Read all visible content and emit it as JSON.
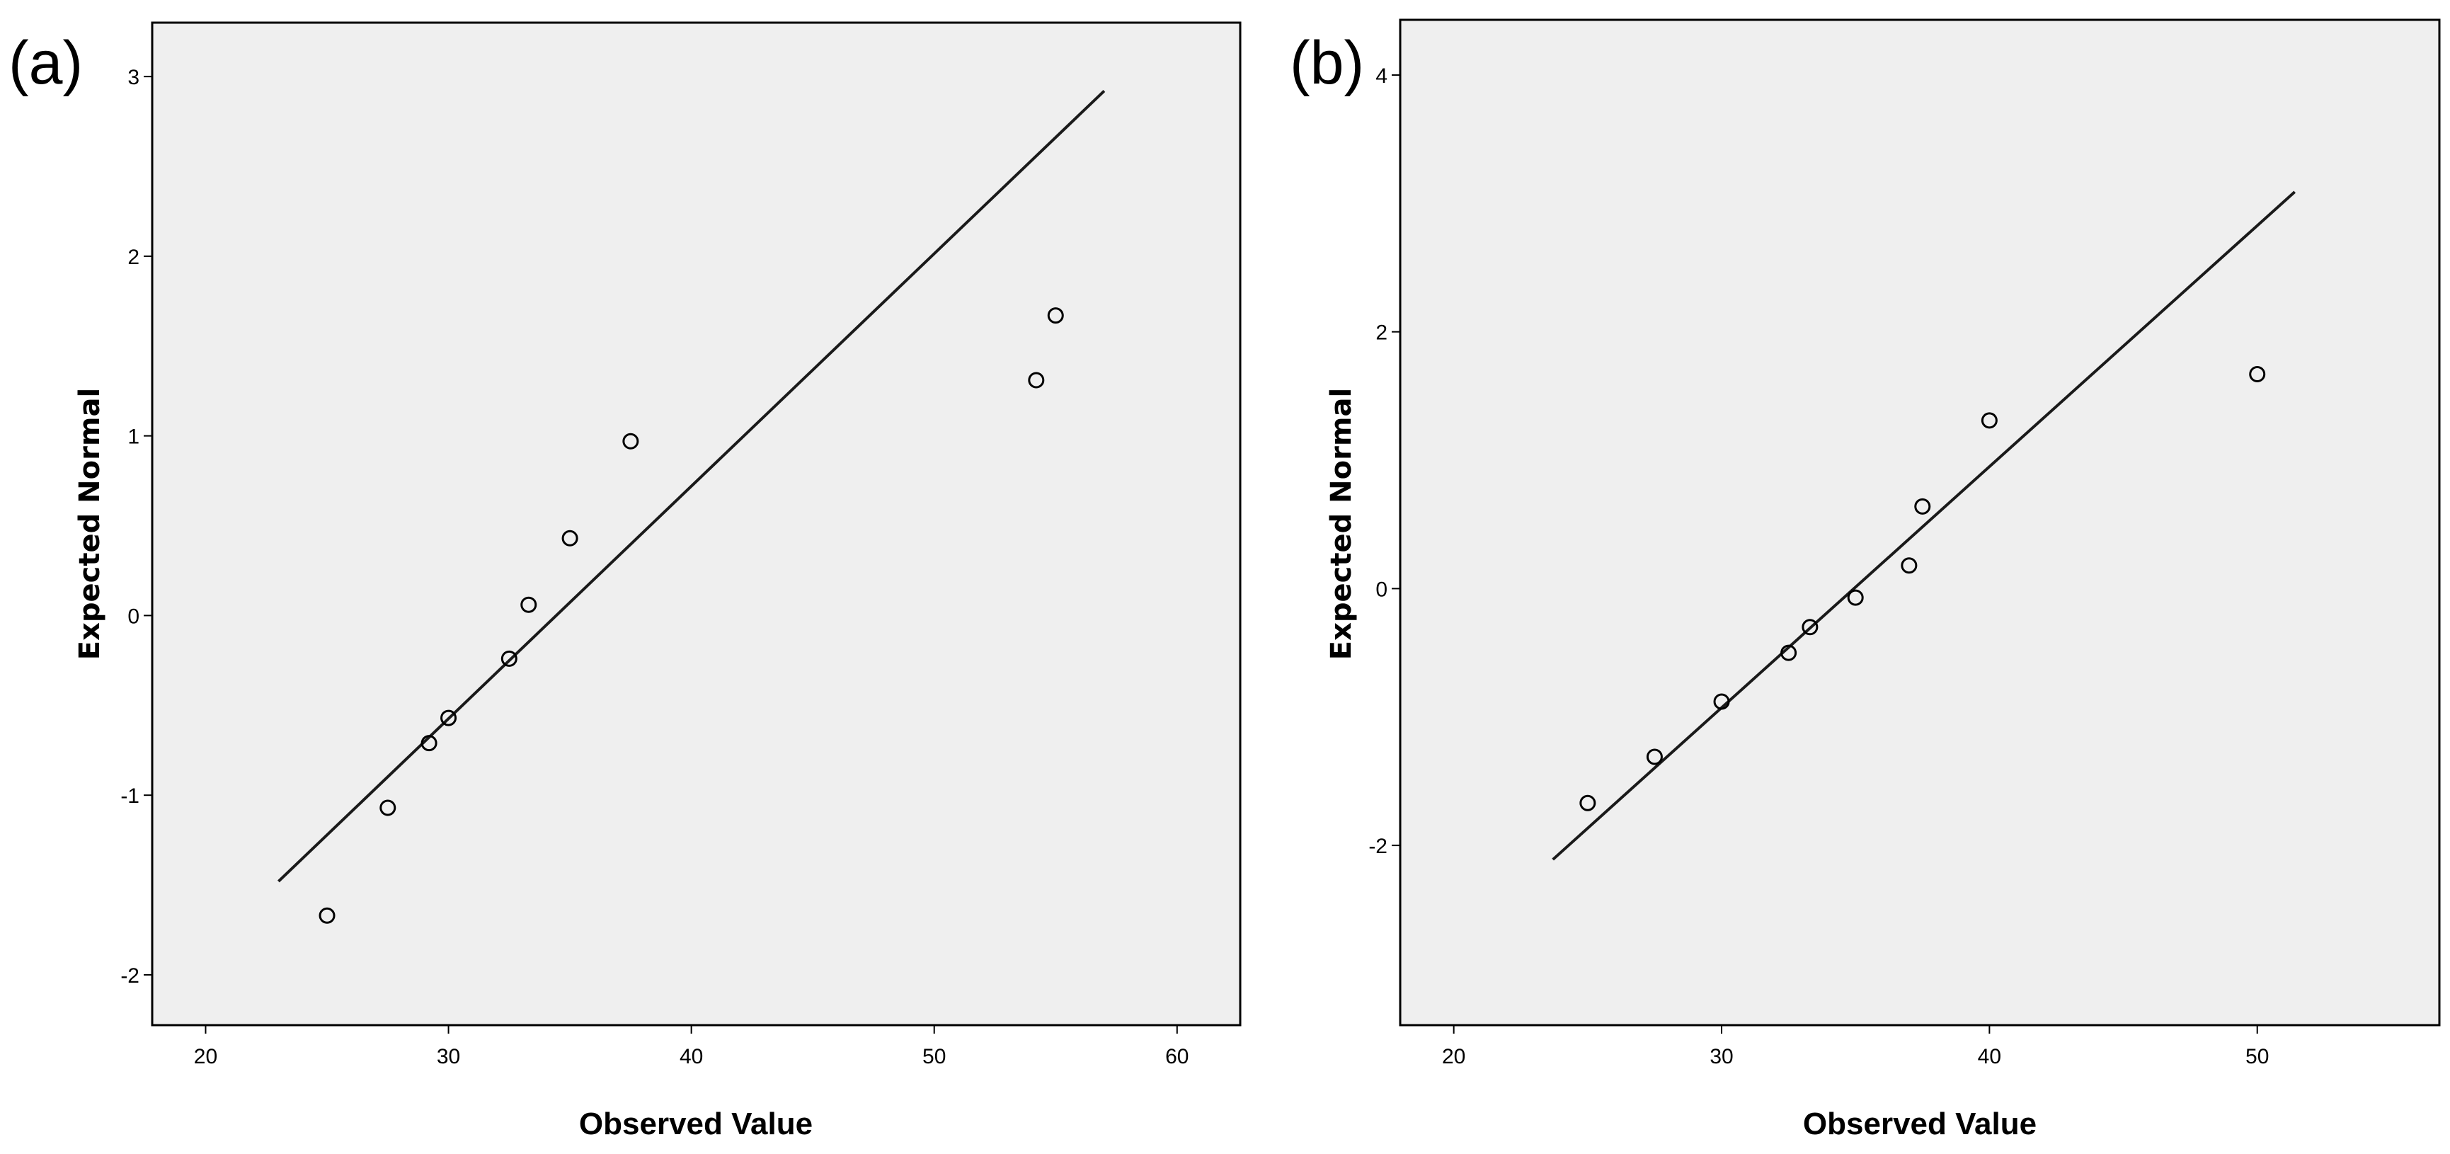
{
  "chart_data": [
    {
      "type": "scatter",
      "panel_label": "(a)",
      "title": "",
      "xlabel": "Observed Value",
      "ylabel": "Expected Normal",
      "xlim": [
        17.8,
        62.6
      ],
      "ylim": [
        -2.28,
        3.3
      ],
      "xticks": [
        20,
        30,
        40,
        50,
        60
      ],
      "xtick_labels": [
        "20",
        "30",
        "40",
        "50",
        "60"
      ],
      "yticks": [
        -2,
        -1,
        0,
        1,
        2,
        3
      ],
      "ytick_labels": [
        "-2",
        "-1",
        "0",
        "1",
        "2",
        "3"
      ],
      "grid": false,
      "legend": "none",
      "points": [
        {
          "x": 25.0,
          "y": -1.67
        },
        {
          "x": 27.5,
          "y": -1.07
        },
        {
          "x": 29.2,
          "y": -0.71
        },
        {
          "x": 30.0,
          "y": -0.57
        },
        {
          "x": 32.5,
          "y": -0.24
        },
        {
          "x": 33.3,
          "y": 0.06
        },
        {
          "x": 35.0,
          "y": 0.43
        },
        {
          "x": 37.5,
          "y": 0.97
        },
        {
          "x": 54.2,
          "y": 1.31
        },
        {
          "x": 55.0,
          "y": 1.67
        }
      ],
      "reference_line": {
        "x": [
          23.0,
          57.0
        ],
        "y": [
          -1.48,
          2.92
        ]
      }
    },
    {
      "type": "scatter",
      "panel_label": "(b)",
      "title": "",
      "xlabel": "Observed Value",
      "ylabel": "Expected Normal",
      "xlim": [
        18.0,
        56.8
      ],
      "ylim": [
        -3.4,
        4.43
      ],
      "xticks": [
        20,
        30,
        40,
        50
      ],
      "xtick_labels": [
        "20",
        "30",
        "40",
        "50"
      ],
      "yticks": [
        -2,
        0,
        2,
        4
      ],
      "ytick_labels": [
        "-2",
        "0",
        "2",
        "4"
      ],
      "grid": false,
      "legend": "none",
      "points": [
        {
          "x": 25.0,
          "y": -1.67
        },
        {
          "x": 27.5,
          "y": -1.31
        },
        {
          "x": 30.0,
          "y": -0.88
        },
        {
          "x": 32.5,
          "y": -0.5
        },
        {
          "x": 33.3,
          "y": -0.3
        },
        {
          "x": 35.0,
          "y": -0.07
        },
        {
          "x": 37.0,
          "y": 0.18
        },
        {
          "x": 37.5,
          "y": 0.64
        },
        {
          "x": 40.0,
          "y": 1.31
        },
        {
          "x": 50.0,
          "y": 1.67
        }
      ],
      "reference_line": {
        "x": [
          23.7,
          51.4
        ],
        "y": [
          -2.11,
          3.09
        ]
      }
    }
  ]
}
